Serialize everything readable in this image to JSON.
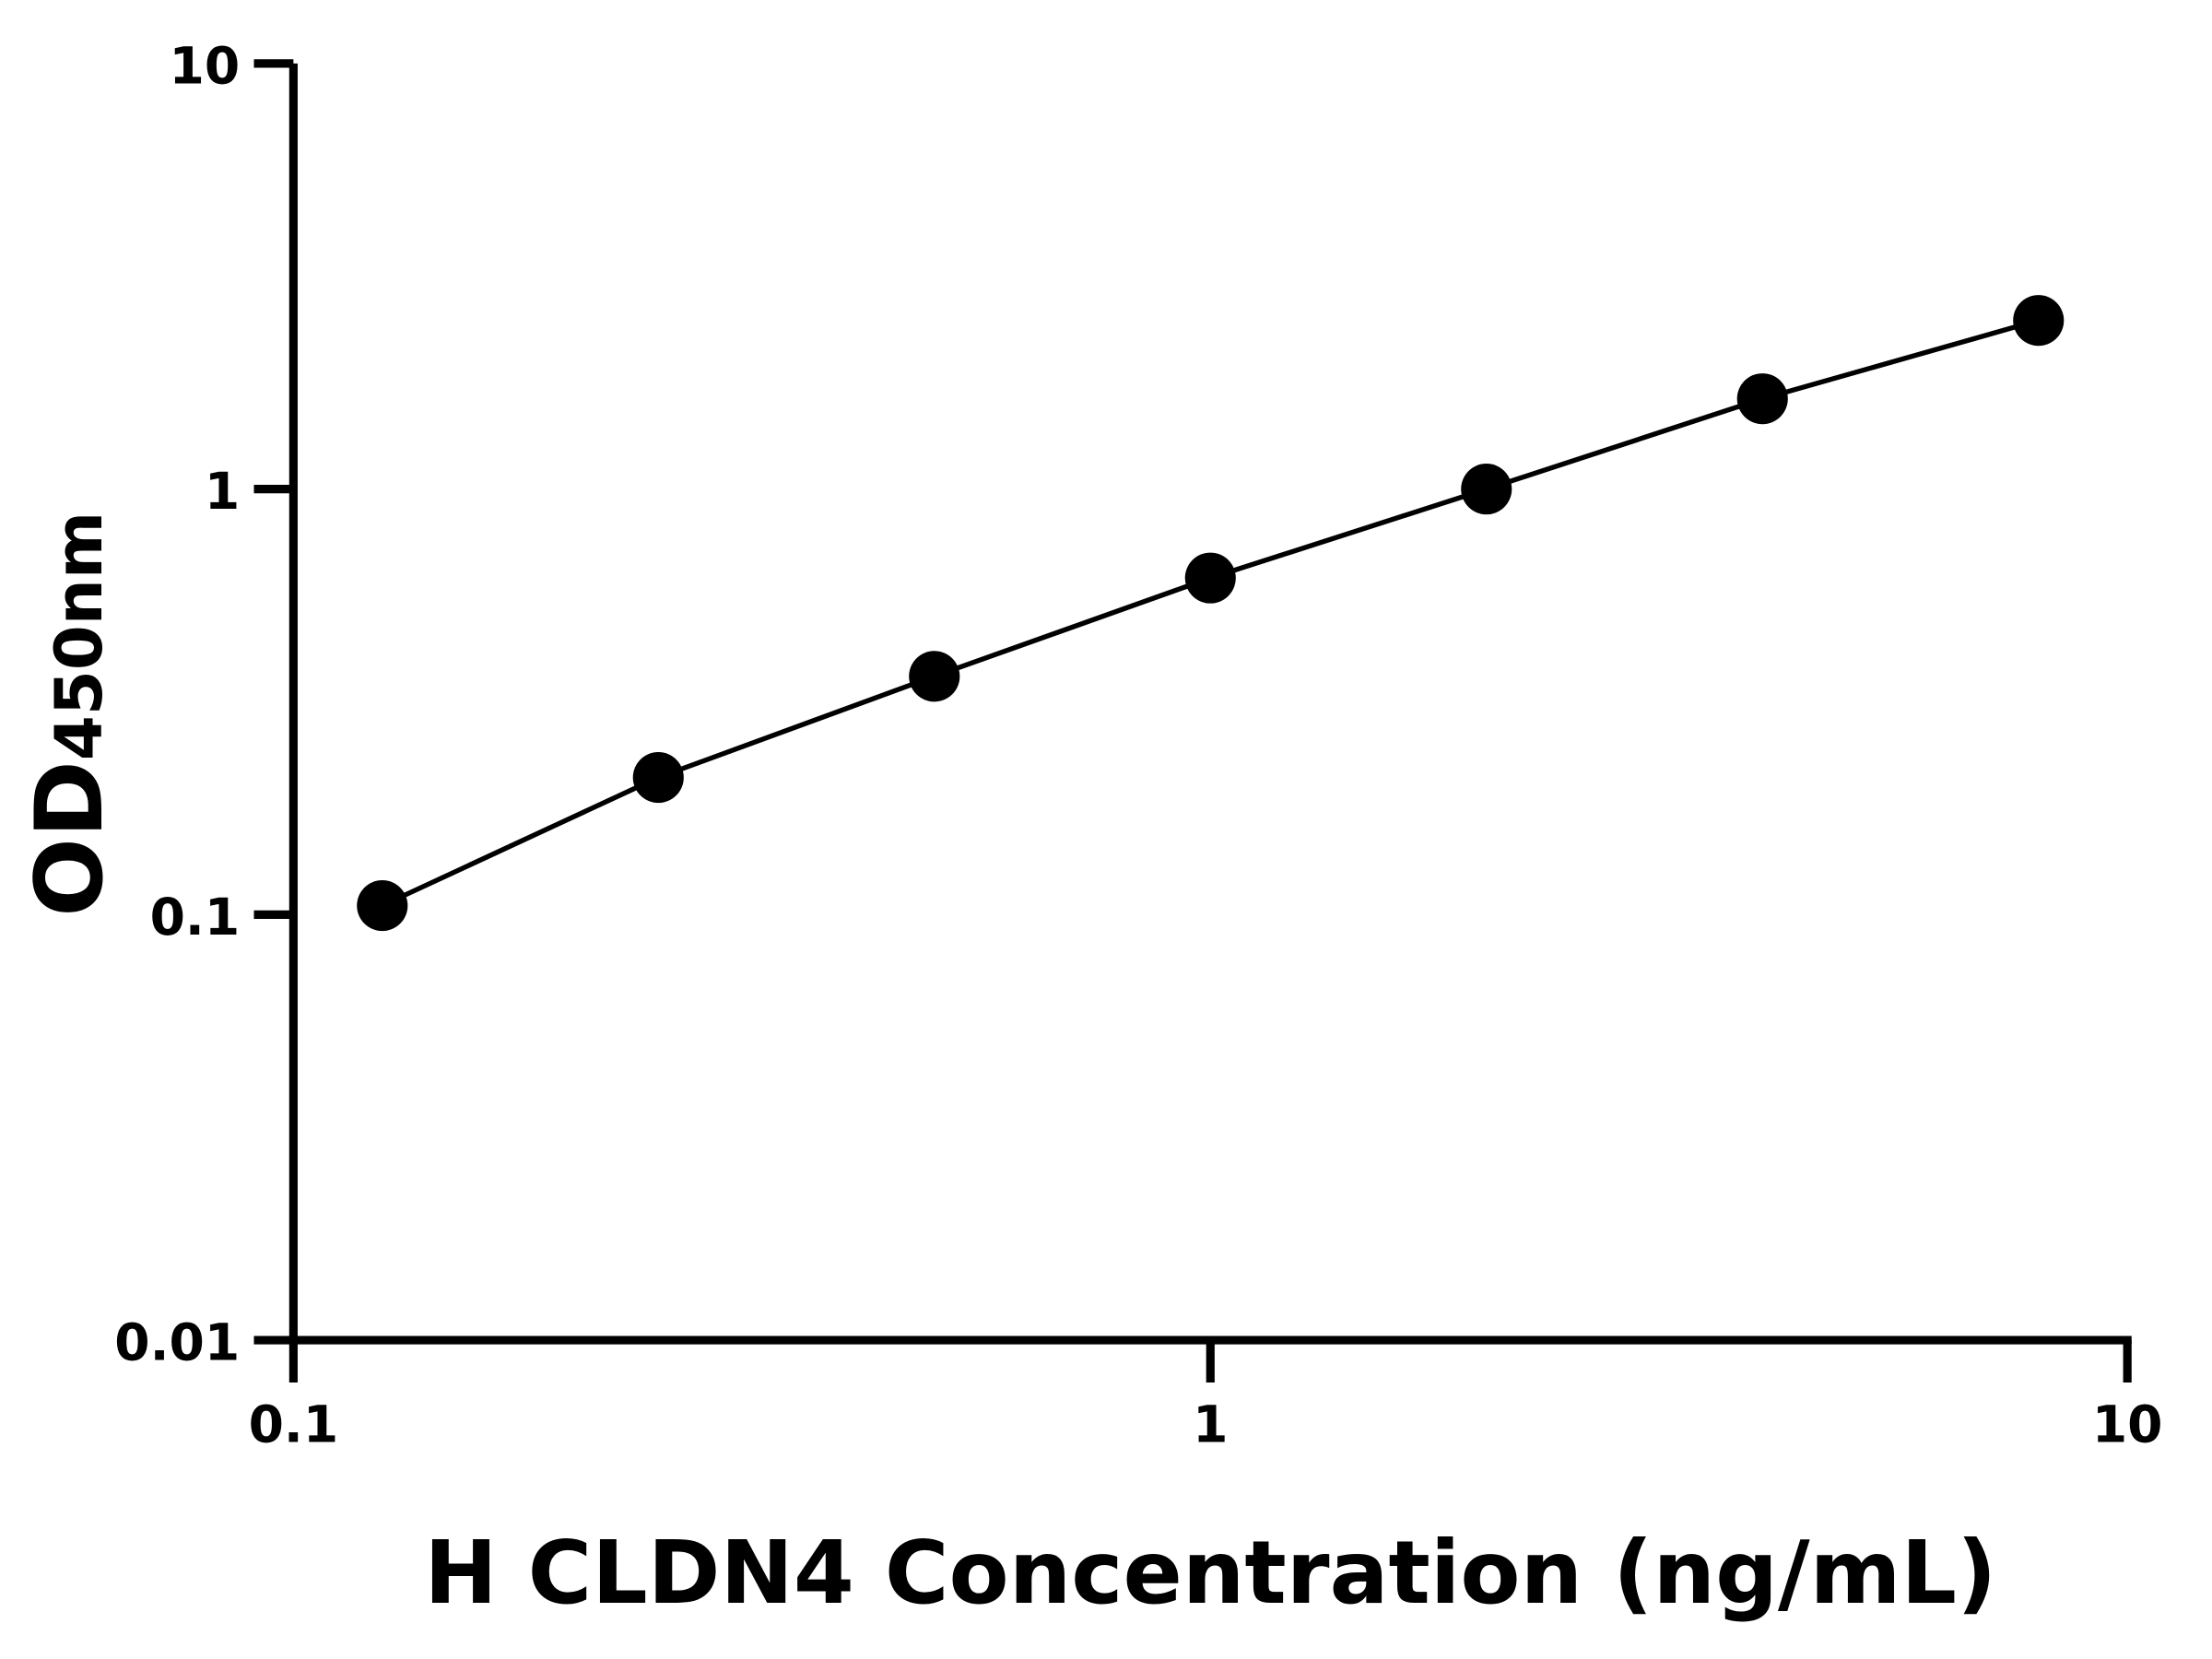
{
  "chart_data": {
    "type": "line",
    "title": "",
    "xlabel": "H CLDN4 Concentration (ng/mL)",
    "ylabel_main": "OD",
    "ylabel_sub": "450nm",
    "x_scale": "log",
    "y_scale": "log",
    "xlim": [
      0.1,
      10
    ],
    "ylim": [
      0.01,
      10
    ],
    "x_ticks": [
      "0.1",
      "1",
      "10"
    ],
    "y_ticks": [
      "0.01",
      "0.1",
      "1",
      "10"
    ],
    "grid": false,
    "series": [
      {
        "x": [
          0.125,
          0.25,
          0.5,
          1,
          2,
          4,
          8
        ],
        "y": [
          0.105,
          0.21,
          0.363,
          0.618,
          1.0,
          1.63,
          2.49
        ],
        "color": "#000000",
        "marker": "circle"
      }
    ]
  }
}
